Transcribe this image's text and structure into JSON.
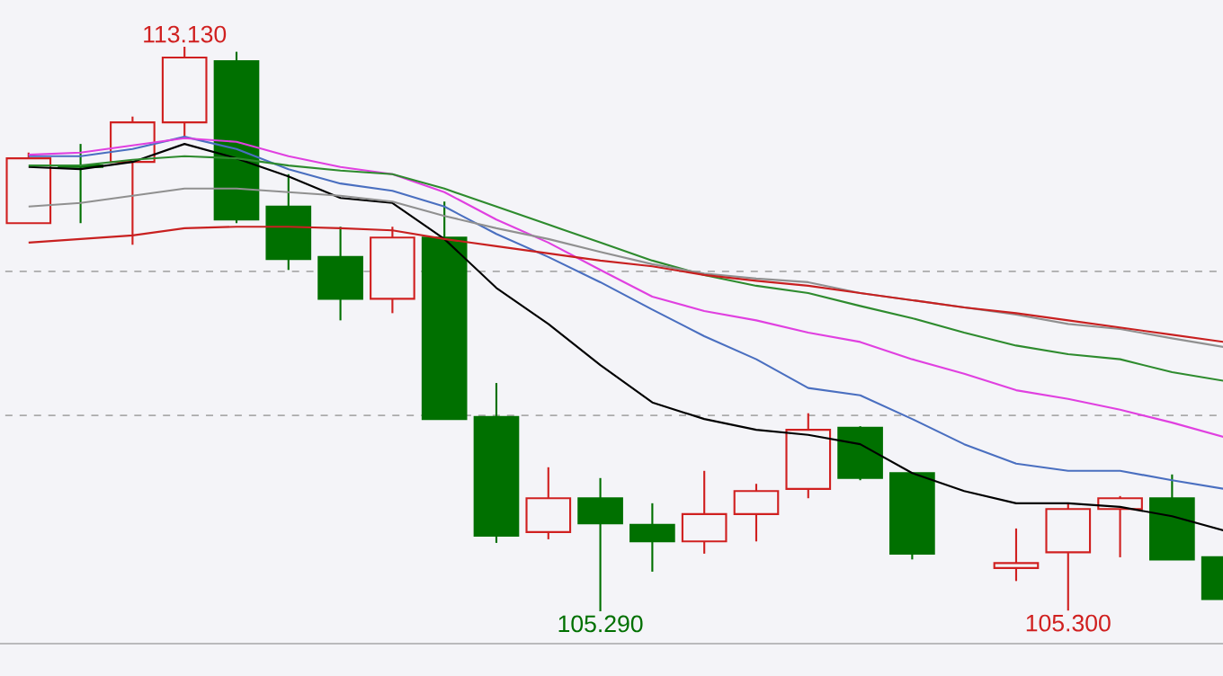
{
  "chart_data": {
    "type": "candlestick",
    "categories": [
      null,
      null,
      null,
      null,
      null,
      null,
      null,
      null,
      null,
      null,
      null,
      null,
      null,
      null,
      null,
      null,
      null,
      null,
      null,
      null,
      null,
      null,
      null,
      null
    ],
    "ohlc": [
      [
        110.68,
        111.66,
        110.68,
        111.58
      ],
      [
        111.48,
        111.78,
        110.68,
        111.46
      ],
      [
        111.53,
        112.16,
        110.38,
        112.08
      ],
      [
        112.08,
        113.13,
        111.88,
        112.98
      ],
      [
        112.93,
        113.06,
        110.68,
        110.73
      ],
      [
        110.91,
        111.36,
        110.03,
        110.18
      ],
      [
        110.21,
        110.63,
        109.33,
        109.63
      ],
      [
        109.63,
        110.63,
        109.43,
        110.48
      ],
      [
        110.48,
        110.98,
        107.96,
        107.96
      ],
      [
        107.99,
        108.46,
        106.24,
        106.34
      ],
      [
        106.39,
        107.29,
        106.29,
        106.86
      ],
      [
        106.86,
        107.14,
        105.29,
        106.51
      ],
      [
        106.49,
        106.79,
        105.84,
        106.26
      ],
      [
        106.26,
        107.24,
        106.09,
        106.64
      ],
      [
        106.64,
        107.06,
        106.26,
        106.96
      ],
      [
        106.99,
        108.04,
        106.86,
        107.81
      ],
      [
        107.84,
        107.86,
        107.11,
        107.14
      ],
      [
        107.21,
        107.21,
        106.01,
        106.09
      ],
      null,
      [
        105.89,
        106.44,
        105.71,
        105.96
      ],
      [
        106.11,
        106.79,
        105.3,
        106.71
      ],
      [
        106.71,
        106.89,
        106.04,
        106.86
      ],
      [
        106.86,
        107.19,
        106.01,
        106.01
      ],
      [
        106.04,
        106.04,
        105.46,
        105.46
      ]
    ],
    "colors": [
      "#d02020",
      "#007000",
      "#d02020",
      "#d02020",
      "#007000",
      "#007000",
      "#007000",
      "#d02020",
      "#007000",
      "#007000",
      "#d02020",
      "#007000",
      "#007000",
      "#d02020",
      "#d02020",
      "#d02020",
      "#007000",
      "#007000",
      null,
      "#d02020",
      "#d02020",
      "#d02020",
      "#007000",
      "#007000"
    ],
    "series": [
      {
        "type": "line",
        "color": "#000000",
        "values": [
          111.46,
          111.43,
          111.53,
          111.78,
          111.58,
          111.33,
          111.03,
          110.96,
          110.46,
          109.78,
          109.28,
          108.71,
          108.19,
          107.96,
          107.81,
          107.74,
          107.61,
          107.21,
          106.96,
          106.79,
          106.79,
          106.74,
          106.61,
          106.41
        ]
      },
      {
        "type": "line",
        "color": "#4a6fc0",
        "values": [
          111.61,
          111.61,
          111.71,
          111.88,
          111.71,
          111.43,
          111.23,
          111.13,
          110.91,
          110.53,
          110.21,
          109.86,
          109.48,
          109.11,
          108.79,
          108.39,
          108.29,
          107.96,
          107.61,
          107.34,
          107.24,
          107.24,
          107.11,
          106.99
        ]
      },
      {
        "type": "line",
        "color": "#e040e0",
        "values": [
          111.63,
          111.66,
          111.76,
          111.86,
          111.81,
          111.61,
          111.46,
          111.36,
          111.11,
          110.73,
          110.41,
          110.03,
          109.66,
          109.46,
          109.33,
          109.16,
          109.03,
          108.79,
          108.59,
          108.36,
          108.24,
          108.09,
          107.91,
          107.71
        ]
      },
      {
        "type": "line",
        "color": "#2e8b2e",
        "values": [
          111.48,
          111.48,
          111.56,
          111.61,
          111.58,
          111.48,
          111.41,
          111.36,
          111.16,
          110.91,
          110.66,
          110.41,
          110.16,
          109.96,
          109.81,
          109.71,
          109.53,
          109.36,
          109.16,
          108.98,
          108.86,
          108.79,
          108.61,
          108.49
        ]
      },
      {
        "type": "line",
        "color": "#909090",
        "values": [
          110.91,
          110.96,
          111.06,
          111.16,
          111.16,
          111.11,
          111.06,
          110.98,
          110.78,
          110.61,
          110.46,
          110.28,
          110.11,
          109.98,
          109.91,
          109.86,
          109.71,
          109.61,
          109.51,
          109.41,
          109.28,
          109.21,
          109.08,
          108.96
        ]
      },
      {
        "type": "line",
        "color": "#c82020",
        "values": [
          110.41,
          110.46,
          110.51,
          110.61,
          110.63,
          110.63,
          110.61,
          110.58,
          110.46,
          110.36,
          110.26,
          110.16,
          110.08,
          109.96,
          109.88,
          109.81,
          109.71,
          109.61,
          109.51,
          109.43,
          109.33,
          109.23,
          109.13,
          109.03
        ]
      }
    ],
    "ref_lines": [
      {
        "axis": "y",
        "value": 110.01,
        "color": "#aaaaaa",
        "line_style": "dashed"
      },
      {
        "axis": "y",
        "value": 108.01,
        "color": "#aaaaaa",
        "line_style": "dashed"
      }
    ],
    "annotations": [
      {
        "text": "113.130",
        "y": 113.13
      },
      {
        "text": "105.290",
        "y": 105.29
      },
      {
        "text": "105.300",
        "y": 105.3
      }
    ],
    "tick_labels": false
  }
}
